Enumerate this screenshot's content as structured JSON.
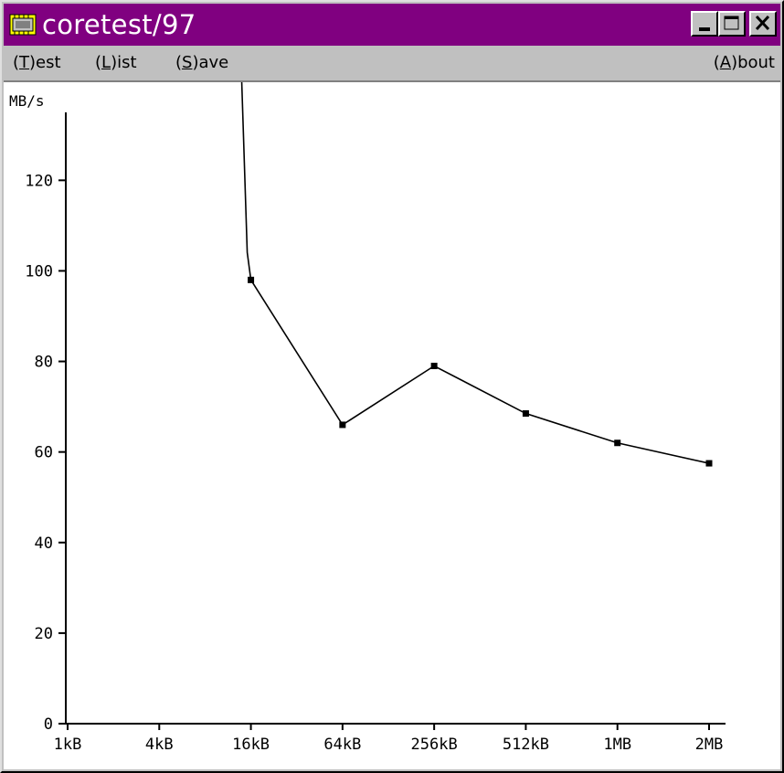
{
  "window": {
    "title": "coretest/97",
    "icon": "chip-icon",
    "colors": {
      "titlebar": "#800080",
      "face": "#c0c0c0"
    }
  },
  "menu": {
    "items": [
      {
        "id": "test",
        "prefix": "(",
        "accel": "T",
        "rest": ")est"
      },
      {
        "id": "list",
        "prefix": "(",
        "accel": "L",
        "rest": ")ist"
      },
      {
        "id": "save",
        "prefix": "(",
        "accel": "S",
        "rest": ")ave"
      }
    ],
    "about": {
      "id": "about",
      "prefix": "(",
      "accel": "A",
      "rest": ")bout"
    }
  },
  "chart_data": {
    "type": "line",
    "ylabel": "MB/s",
    "xlabel": "",
    "categories": [
      "1kB",
      "4kB",
      "16kB",
      "64kB",
      "256kB",
      "512kB",
      "1MB",
      "2MB"
    ],
    "yticks": [
      0,
      20,
      40,
      60,
      80,
      100,
      120
    ],
    "ylim": [
      0,
      135
    ],
    "grid": false,
    "series": [
      {
        "values": [
          null,
          null,
          98,
          66,
          79,
          68.5,
          62,
          57.5
        ],
        "offscale_above": true
      }
    ]
  }
}
